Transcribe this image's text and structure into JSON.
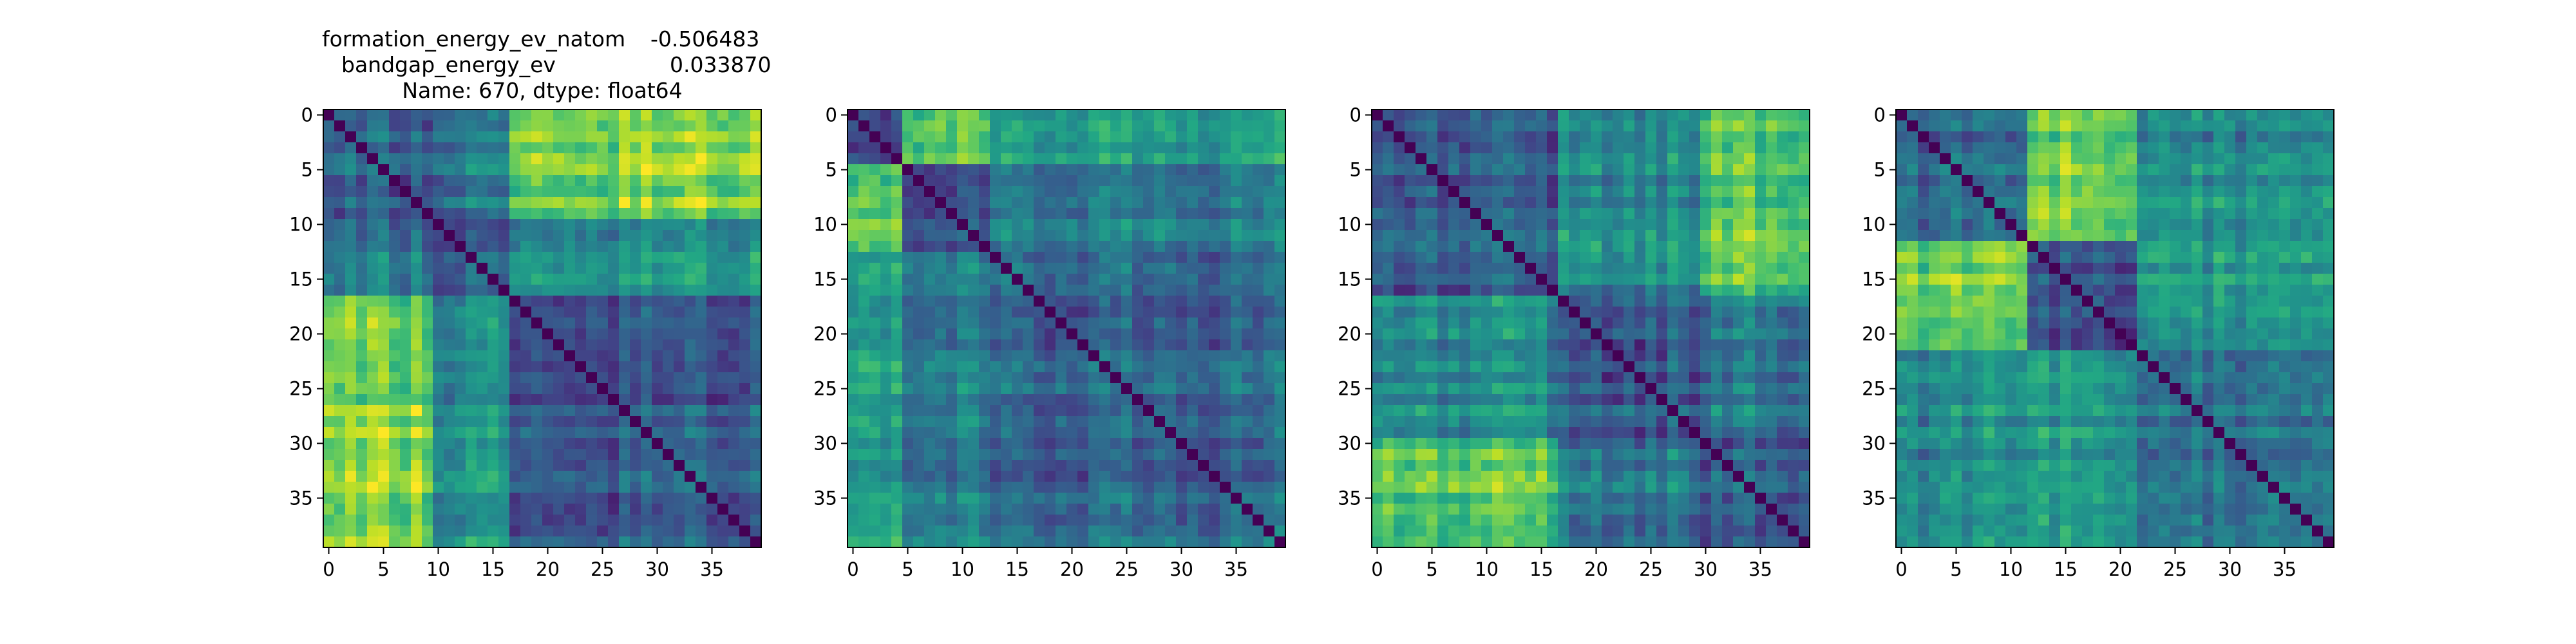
{
  "figure": {
    "title_lines": [
      {
        "label": "formation_energy_ev_natom",
        "value": "-0.506483"
      },
      {
        "label": "bandgap_energy_ev",
        "value": "0.033870"
      },
      {
        "text": "Name: 670, dtype: float64"
      }
    ]
  },
  "colormap": [
    "#440154",
    "#482475",
    "#414487",
    "#355f8d",
    "#2a788e",
    "#21918c",
    "#22a884",
    "#44bf70",
    "#7ad151",
    "#bddf26",
    "#fde725"
  ],
  "chart_data": [
    {
      "type": "heatmap",
      "n": 40,
      "diagonal": 0,
      "x_ticks": [
        0,
        5,
        10,
        15,
        20,
        25,
        30,
        35
      ],
      "y_ticks": [
        0,
        5,
        10,
        15,
        20,
        25,
        30,
        35
      ],
      "groups": [
        {
          "start": 0,
          "end": 9
        },
        {
          "start": 10,
          "end": 16
        },
        {
          "start": 17,
          "end": 39
        }
      ],
      "block_values": [
        [
          0.3,
          0.38,
          0.8
        ],
        [
          0.38,
          0.28,
          0.5
        ],
        [
          0.8,
          0.5,
          0.28
        ]
      ]
    },
    {
      "type": "heatmap",
      "n": 40,
      "diagonal": 0,
      "x_ticks": [
        0,
        5,
        10,
        15,
        20,
        25,
        30,
        35
      ],
      "y_ticks": [
        0,
        5,
        10,
        15,
        20,
        25,
        30,
        35
      ],
      "groups": [
        {
          "start": 0,
          "end": 4
        },
        {
          "start": 5,
          "end": 12
        },
        {
          "start": 13,
          "end": 39
        }
      ],
      "block_values": [
        [
          0.3,
          0.8,
          0.6
        ],
        [
          0.8,
          0.3,
          0.45
        ],
        [
          0.6,
          0.45,
          0.35
        ]
      ]
    },
    {
      "type": "heatmap",
      "n": 40,
      "diagonal": 0,
      "x_ticks": [
        0,
        5,
        10,
        15,
        20,
        25,
        30,
        35
      ],
      "y_ticks": [
        0,
        5,
        10,
        15,
        20,
        25,
        30,
        35
      ],
      "groups": [
        {
          "start": 0,
          "end": 16
        },
        {
          "start": 17,
          "end": 29
        },
        {
          "start": 30,
          "end": 39
        }
      ],
      "block_values": [
        [
          0.28,
          0.48,
          0.72
        ],
        [
          0.48,
          0.3,
          0.4
        ],
        [
          0.72,
          0.4,
          0.3
        ]
      ]
    },
    {
      "type": "heatmap",
      "n": 40,
      "diagonal": 0,
      "x_ticks": [
        0,
        5,
        10,
        15,
        20,
        25,
        30,
        35
      ],
      "y_ticks": [
        0,
        5,
        10,
        15,
        20,
        25,
        30,
        35
      ],
      "groups": [
        {
          "start": 0,
          "end": 11
        },
        {
          "start": 12,
          "end": 21
        },
        {
          "start": 22,
          "end": 39
        }
      ],
      "block_values": [
        [
          0.3,
          0.78,
          0.45
        ],
        [
          0.78,
          0.32,
          0.55
        ],
        [
          0.45,
          0.55,
          0.35
        ]
      ]
    }
  ]
}
